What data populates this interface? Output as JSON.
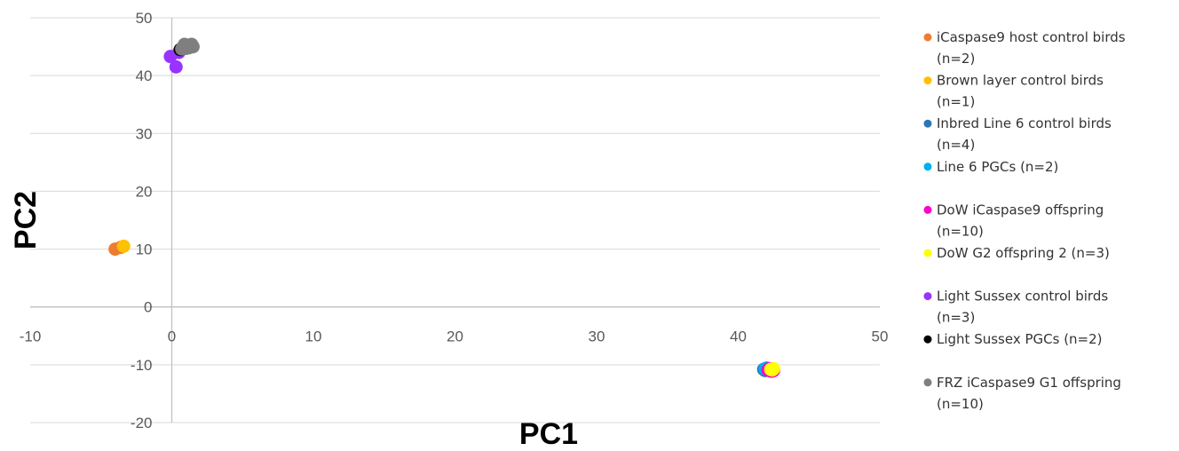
{
  "chart_data": {
    "type": "scatter",
    "title": "",
    "xlabel": "PC1",
    "ylabel": "PC2",
    "xlim": [
      -10,
      50
    ],
    "ylim": [
      -20,
      50
    ],
    "xticks": [
      -10,
      0,
      10,
      20,
      30,
      40,
      50
    ],
    "yticks": [
      -20,
      -10,
      0,
      10,
      20,
      30,
      40,
      50
    ],
    "grid": "horizontal",
    "legend": "right",
    "series": [
      {
        "name": "iCaspase9 host control birds (n=2)",
        "color": "#ED7D31",
        "points": [
          [
            -4.0,
            10.0
          ],
          [
            -3.6,
            10.3
          ]
        ]
      },
      {
        "name": "Brown layer control birds (n=1)",
        "color": "#FFC000",
        "points": [
          [
            -3.4,
            10.5
          ]
        ]
      },
      {
        "name": "Inbred Line 6 control birds (n=4)",
        "color": "#2E75B6",
        "points": [
          [
            41.8,
            -10.8
          ],
          [
            42.0,
            -10.6
          ],
          [
            42.1,
            -10.9
          ],
          [
            41.9,
            -11.0
          ]
        ]
      },
      {
        "name": "Line 6 PGCs (n=2)",
        "color": "#00B0F0",
        "points": [
          [
            41.9,
            -10.7
          ],
          [
            42.0,
            -10.8
          ]
        ]
      },
      {
        "name": "DoW iCaspase9 offspring (n=10)",
        "color": "#FF00CC",
        "points": [
          [
            42.1,
            -10.9
          ],
          [
            42.2,
            -11.0
          ],
          [
            42.3,
            -10.8
          ],
          [
            42.4,
            -11.1
          ],
          [
            42.2,
            -10.7
          ],
          [
            42.3,
            -11.0
          ],
          [
            42.4,
            -10.9
          ],
          [
            42.5,
            -11.0
          ],
          [
            42.3,
            -11.1
          ],
          [
            42.4,
            -10.8
          ]
        ]
      },
      {
        "name": "DoW G2 offspring 2 (n=3)",
        "color": "#FFFF00",
        "points": [
          [
            42.3,
            -10.8
          ],
          [
            42.4,
            -10.9
          ],
          [
            42.5,
            -10.7
          ]
        ]
      },
      {
        "name": "Light Sussex control birds (n=3)",
        "color": "#9933FF",
        "points": [
          [
            -0.1,
            43.3
          ],
          [
            0.3,
            41.5
          ],
          [
            0.5,
            44.0
          ]
        ]
      },
      {
        "name": "Light Sussex PGCs (n=2)",
        "color": "#000000",
        "points": [
          [
            0.6,
            44.5
          ],
          [
            0.9,
            44.8
          ]
        ]
      },
      {
        "name": "FRZ iCaspase9 G1 offspring (n=10)",
        "color": "#7F7F7F",
        "points": [
          [
            0.8,
            45.0
          ],
          [
            1.0,
            45.3
          ],
          [
            1.2,
            44.8
          ],
          [
            1.4,
            45.4
          ],
          [
            0.7,
            44.6
          ],
          [
            1.1,
            45.1
          ],
          [
            1.3,
            44.9
          ],
          [
            0.9,
            45.4
          ],
          [
            1.5,
            45.0
          ],
          [
            1.0,
            44.7
          ]
        ]
      }
    ]
  },
  "legend_items": [
    {
      "line1": "iCaspase9 host control birds",
      "line2": "(n=2)",
      "color": "#ED7D31"
    },
    {
      "line1": "Brown layer control birds",
      "line2": "(n=1)",
      "color": "#FFC000"
    },
    {
      "line1": "Inbred Line 6 control birds",
      "line2": "(n=4)",
      "color": "#2E75B6"
    },
    {
      "line1": "Line 6 PGCs (n=2)",
      "line2": "",
      "color": "#00B0F0"
    },
    {
      "line1": "DoW iCaspase9 offspring",
      "line2": "(n=10)",
      "color": "#FF00CC"
    },
    {
      "line1": "DoW G2 offspring 2 (n=3)",
      "line2": "",
      "color": "#FFFF00"
    },
    {
      "line1": "Light Sussex control birds",
      "line2": "(n=3)",
      "color": "#9933FF"
    },
    {
      "line1": "Light Sussex PGCs (n=2)",
      "line2": "",
      "color": "#000000"
    },
    {
      "line1": "FRZ iCaspase9 G1 offspring",
      "line2": "(n=10)",
      "color": "#7F7F7F"
    }
  ]
}
